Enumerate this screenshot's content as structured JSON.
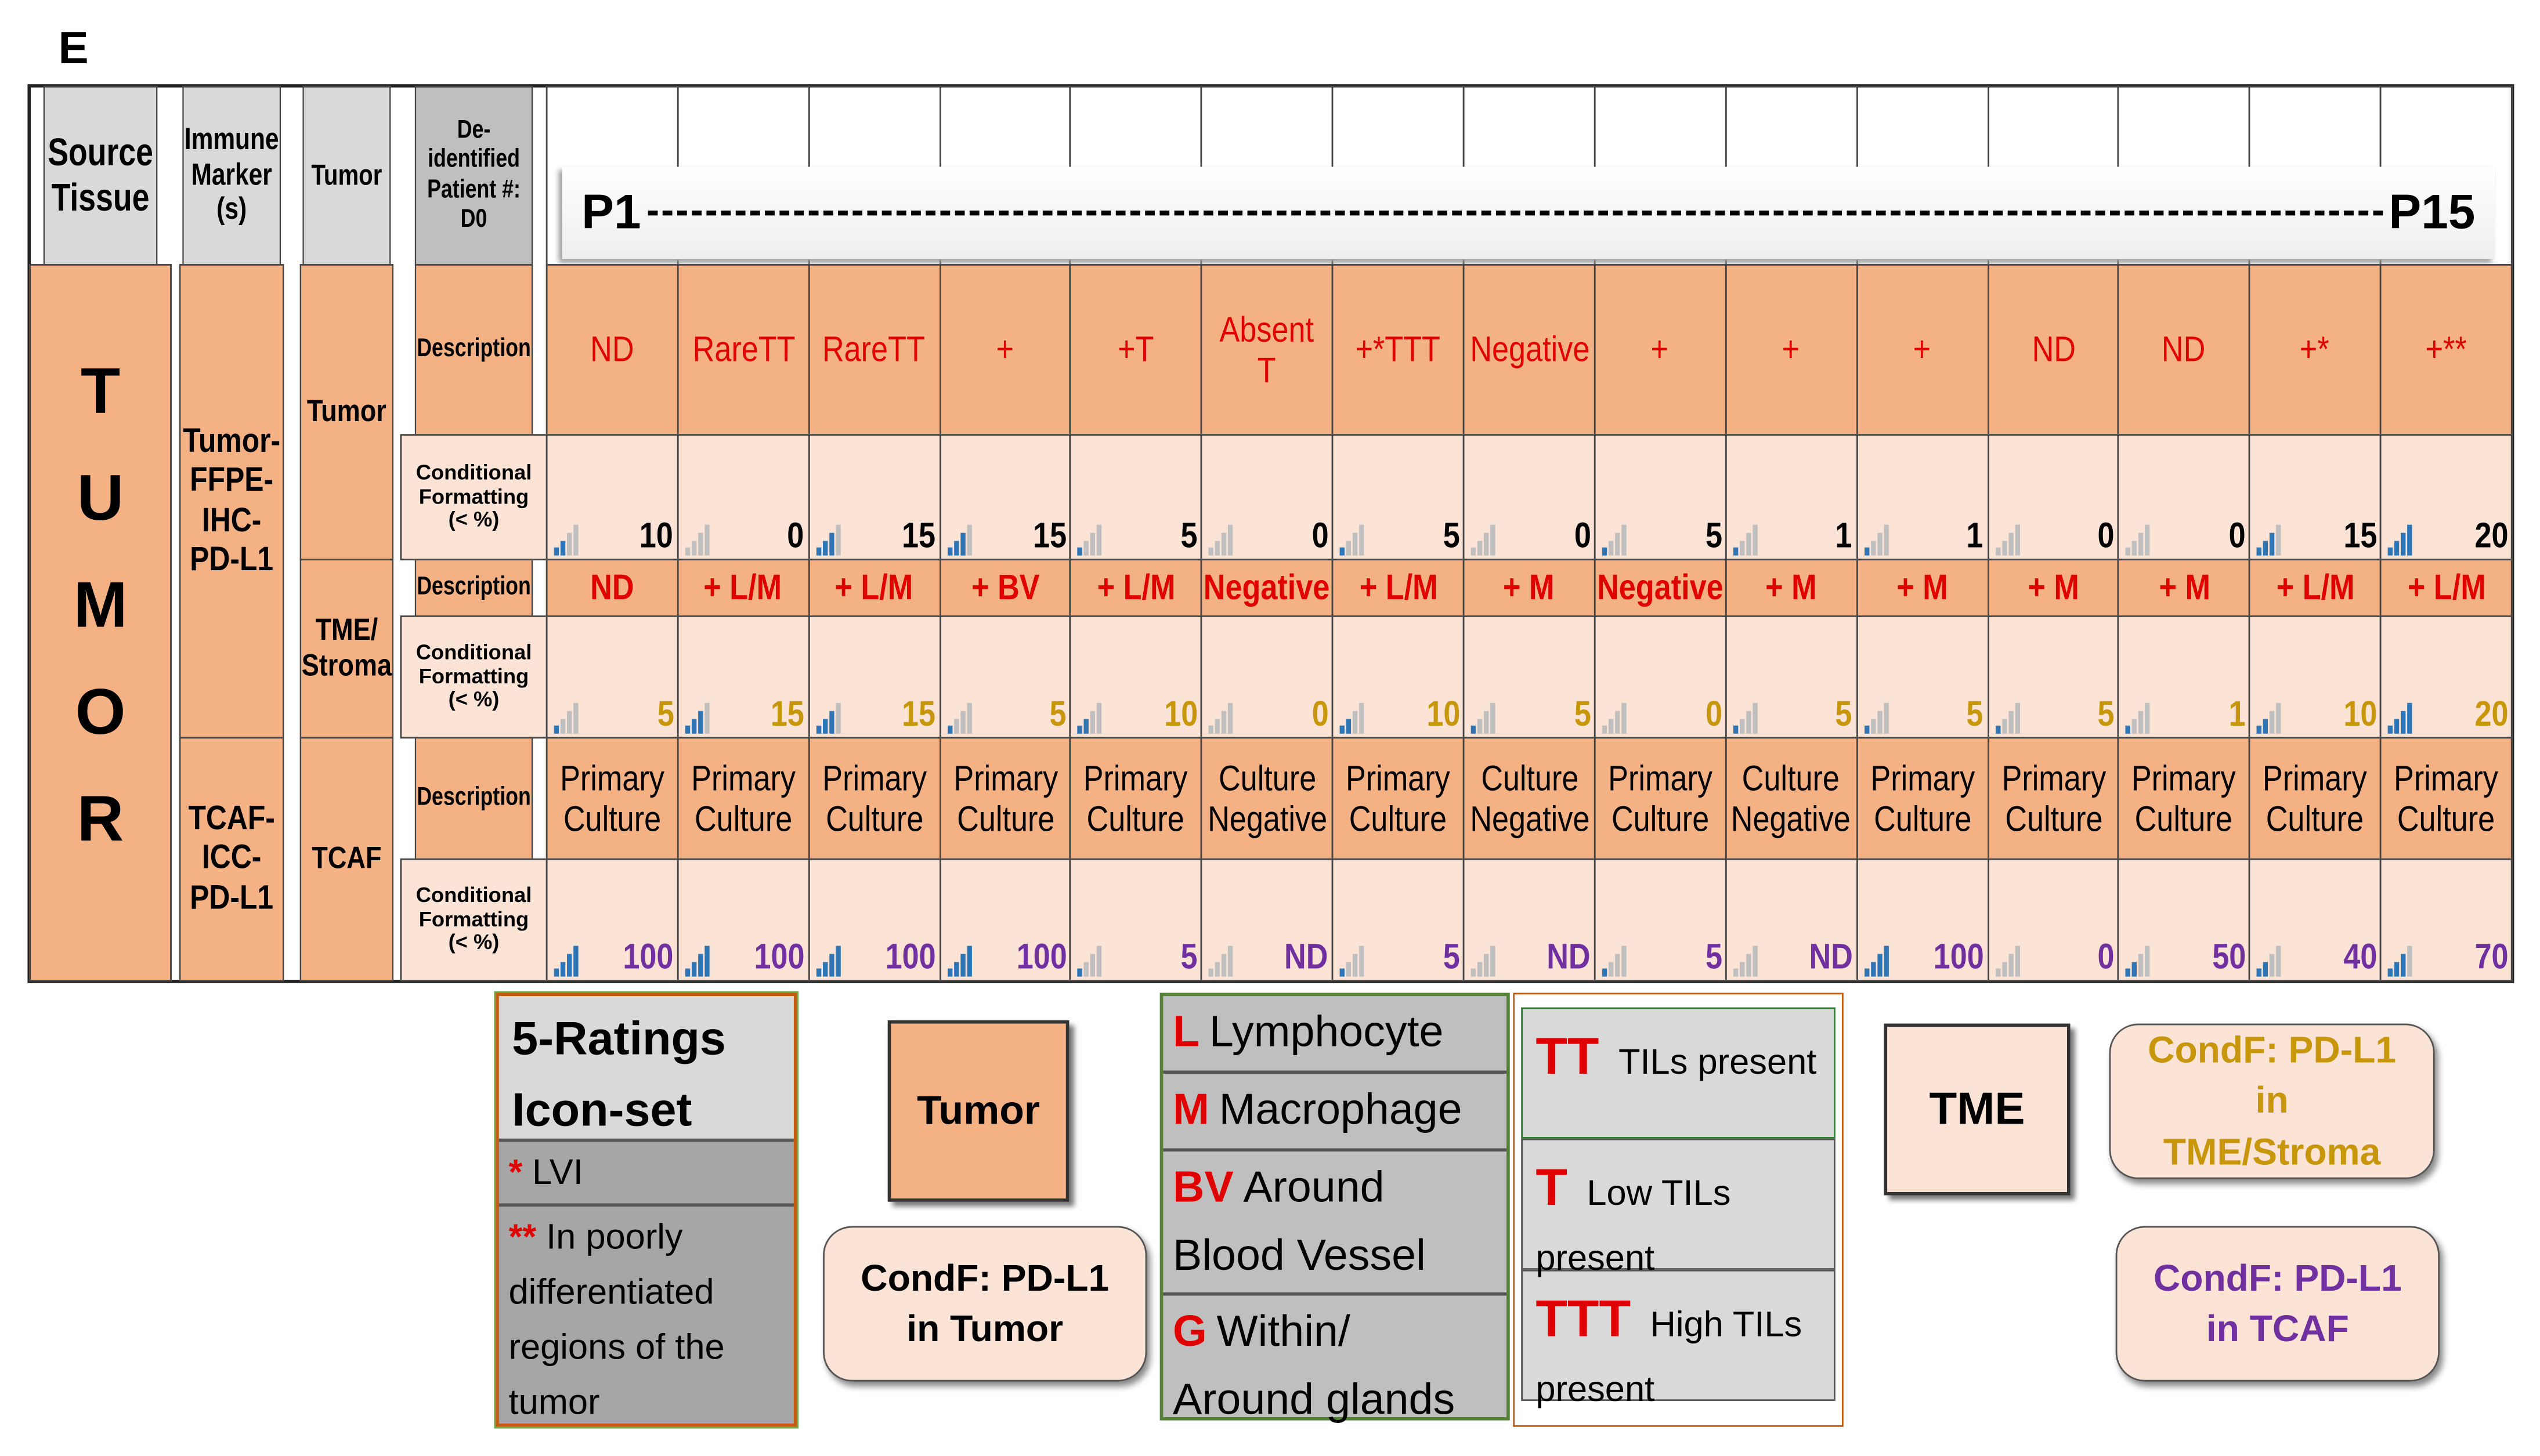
{
  "panel_label": "E",
  "table": {
    "headers": [
      "Source Tissue",
      "Immune Marker (s)",
      "Tumor",
      "De-identified Patient #: D0"
    ],
    "patient_range": [
      "P1",
      "P15"
    ],
    "source": "TUMOR",
    "groups": [
      {
        "marker": "Tumor-FFPE-IHC-PD-L1",
        "compartments": [
          {
            "name": "Tumor",
            "description_label": "Description",
            "formatting_label": "Conditional Formatting (< %)",
            "description_color": "#e00000",
            "value_color": "#000000",
            "descriptions": [
              "ND",
              "RareTT",
              "RareTT",
              "+",
              "+T",
              "Absent T",
              "+*TTT",
              "Negative",
              "+",
              "+",
              "+",
              "ND",
              "ND",
              "+*",
              "+**"
            ],
            "values": [
              10,
              0,
              15,
              15,
              5,
              0,
              5,
              0,
              5,
              1,
              1,
              0,
              0,
              15,
              20
            ]
          },
          {
            "name": "TME/ Stroma",
            "description_label": "Description",
            "formatting_label": "Conditional Formatting (< %)",
            "description_color": "#e00000",
            "value_color": "#c8960a",
            "descriptions": [
              "ND",
              "+ L/M",
              "+ L/M",
              "+  BV",
              "+ L/M",
              "Negative",
              "+ L/M",
              "+  M",
              "Negative",
              "+  M",
              "+ M",
              "+ M",
              "+ M",
              "+ L/M",
              "+ L/M"
            ],
            "values": [
              5,
              15,
              15,
              5,
              10,
              0,
              10,
              5,
              0,
              5,
              5,
              5,
              1,
              10,
              20
            ]
          }
        ]
      },
      {
        "marker": "TCAF-ICC-PD-L1",
        "compartments": [
          {
            "name": "TCAF",
            "description_label": "Description",
            "formatting_label": "Conditional Formatting (< %)",
            "description_color": "#000000",
            "value_color": "#7030a0",
            "descriptions": [
              "Primary Culture",
              "Primary Culture",
              "Primary Culture",
              "Primary Culture",
              "Primary Culture",
              "Culture Negative",
              "Primary Culture",
              "Culture Negative",
              "Primary Culture",
              "Culture Negative",
              "Primary Culture",
              "Primary Culture",
              "Primary Culture",
              "Primary Culture",
              "Primary Culture"
            ],
            "values": [
              100,
              100,
              100,
              100,
              5,
              "ND",
              5,
              "ND",
              5,
              "ND",
              100,
              0,
              50,
              40,
              70
            ]
          }
        ]
      }
    ]
  },
  "legend": {
    "ratings_title": "5-Ratings Icon-set",
    "notes": [
      {
        "symbol": "*",
        "text": "LVI"
      },
      {
        "symbol": "**",
        "text": "In poorly differentiated regions of the tumor"
      }
    ],
    "tumor_box": "Tumor",
    "condf_tumor": "CondF: PD-L1 in Tumor",
    "cells": [
      {
        "code": "L",
        "text": "Lymphocyte"
      },
      {
        "code": "M",
        "text": "Macrophage"
      },
      {
        "code": "BV",
        "text": "Around Blood Vessel"
      },
      {
        "code": "G",
        "text": "Within/ Around glands"
      }
    ],
    "tils": [
      {
        "code": "TT",
        "text": "TILs present"
      },
      {
        "code": "T",
        "text": "Low TILs present"
      },
      {
        "code": "TTT",
        "text": "High TILs present"
      }
    ],
    "tme_box": "TME",
    "condf_tme": "CondF: PD-L1 in TME/Stroma",
    "condf_tcaf": "CondF: PD-L1 in TCAF"
  }
}
